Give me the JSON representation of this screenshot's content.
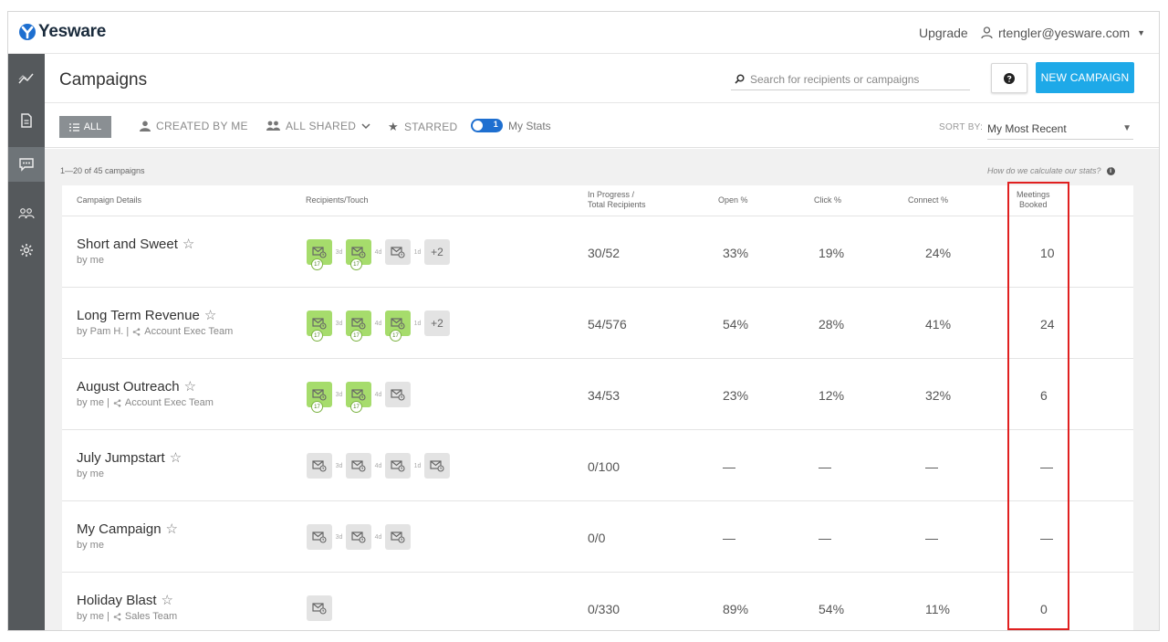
{
  "topbar": {
    "brand": "Yesware",
    "upgrade_label": "Upgrade",
    "user_email": "rtengler@yesware.com",
    "user_icon": "person-icon"
  },
  "sidebar": {
    "items": [
      {
        "icon": "trends-icon",
        "active": false
      },
      {
        "icon": "document-icon",
        "active": false
      },
      {
        "icon": "chat-icon",
        "active": true
      },
      {
        "icon": "people-icon",
        "active": false
      },
      {
        "icon": "gear-icon",
        "active": false
      }
    ]
  },
  "header": {
    "title": "Campaigns",
    "search_placeholder": "Search for recipients or campaigns",
    "new_campaign_label": "NEW CAMPAIGN"
  },
  "filters": {
    "all_label": "ALL",
    "created_by_me_label": "CREATED BY ME",
    "all_shared_label": "ALL SHARED",
    "starred_label": "STARRED",
    "toggle_number": "1",
    "my_stats_label": "My Stats",
    "sort_by_label": "SORT BY:",
    "sort_value": "My Most Recent"
  },
  "content": {
    "count_text": "1—20 of 45 campaigns",
    "how_text": "How do we calculate our stats?"
  },
  "table": {
    "headers": {
      "details": "Campaign Details",
      "recipients": "Recipients/Touch",
      "in_progress_1": "In Progress /",
      "in_progress_2": "Total Recipients",
      "open": "Open %",
      "click": "Click %",
      "connect": "Connect %",
      "meetings_1": "Meetings",
      "meetings_2": "Booked"
    },
    "rows": [
      {
        "name": "Short and Sweet",
        "owner": "by me",
        "team": "",
        "progress": "30/52",
        "open": "33%",
        "click": "19%",
        "connect": "24%",
        "meetings": "10",
        "touches": [
          {
            "type": "g",
            "badge": "17"
          },
          {
            "gap": "3d"
          },
          {
            "type": "g",
            "badge": "17"
          },
          {
            "gap": "4d"
          },
          {
            "type": "n"
          },
          {
            "gap": "1d"
          }
        ],
        "more": "+2"
      },
      {
        "name": "Long Term Revenue",
        "owner": "by Pam H. |",
        "team": "Account Exec Team",
        "progress": "54/576",
        "open": "54%",
        "click": "28%",
        "connect": "41%",
        "meetings": "24",
        "touches": [
          {
            "type": "g",
            "badge": "17"
          },
          {
            "gap": "3d"
          },
          {
            "type": "g",
            "badge": "17"
          },
          {
            "gap": "4d"
          },
          {
            "type": "g",
            "badge": "17"
          },
          {
            "gap": "1d"
          }
        ],
        "more": "+2"
      },
      {
        "name": "August Outreach",
        "owner": "by me |",
        "team": "Account Exec Team",
        "progress": "34/53",
        "open": "23%",
        "click": "12%",
        "connect": "32%",
        "meetings": "6",
        "touches": [
          {
            "type": "g",
            "badge": "17"
          },
          {
            "gap": "3d"
          },
          {
            "type": "g",
            "badge": "17"
          },
          {
            "gap": "4d"
          },
          {
            "type": "n"
          }
        ],
        "more": ""
      },
      {
        "name": "July Jumpstart",
        "owner": "by me",
        "team": "",
        "progress": "0/100",
        "open": "—",
        "click": "—",
        "connect": "—",
        "meetings": "—",
        "touches": [
          {
            "type": "n"
          },
          {
            "gap": "3d"
          },
          {
            "type": "n"
          },
          {
            "gap": "4d"
          },
          {
            "type": "n"
          },
          {
            "gap": "1d"
          },
          {
            "type": "n"
          }
        ],
        "more": ""
      },
      {
        "name": "My Campaign",
        "owner": "by me",
        "team": "",
        "progress": "0/0",
        "open": "—",
        "click": "—",
        "connect": "—",
        "meetings": "—",
        "touches": [
          {
            "type": "n"
          },
          {
            "gap": "3d"
          },
          {
            "type": "n"
          },
          {
            "gap": "4d"
          },
          {
            "type": "n"
          }
        ],
        "more": ""
      },
      {
        "name": "Holiday Blast",
        "owner": "by me |",
        "team": "Sales Team",
        "progress": "0/330",
        "open": "89%",
        "click": "54%",
        "connect": "11%",
        "meetings": "0",
        "touches": [
          {
            "type": "n"
          }
        ],
        "more": ""
      }
    ]
  },
  "colors": {
    "accent": "#1ea9e8",
    "sidebar": "#55595c",
    "touch_green": "#a6dc6c",
    "highlight": "#e02020"
  }
}
